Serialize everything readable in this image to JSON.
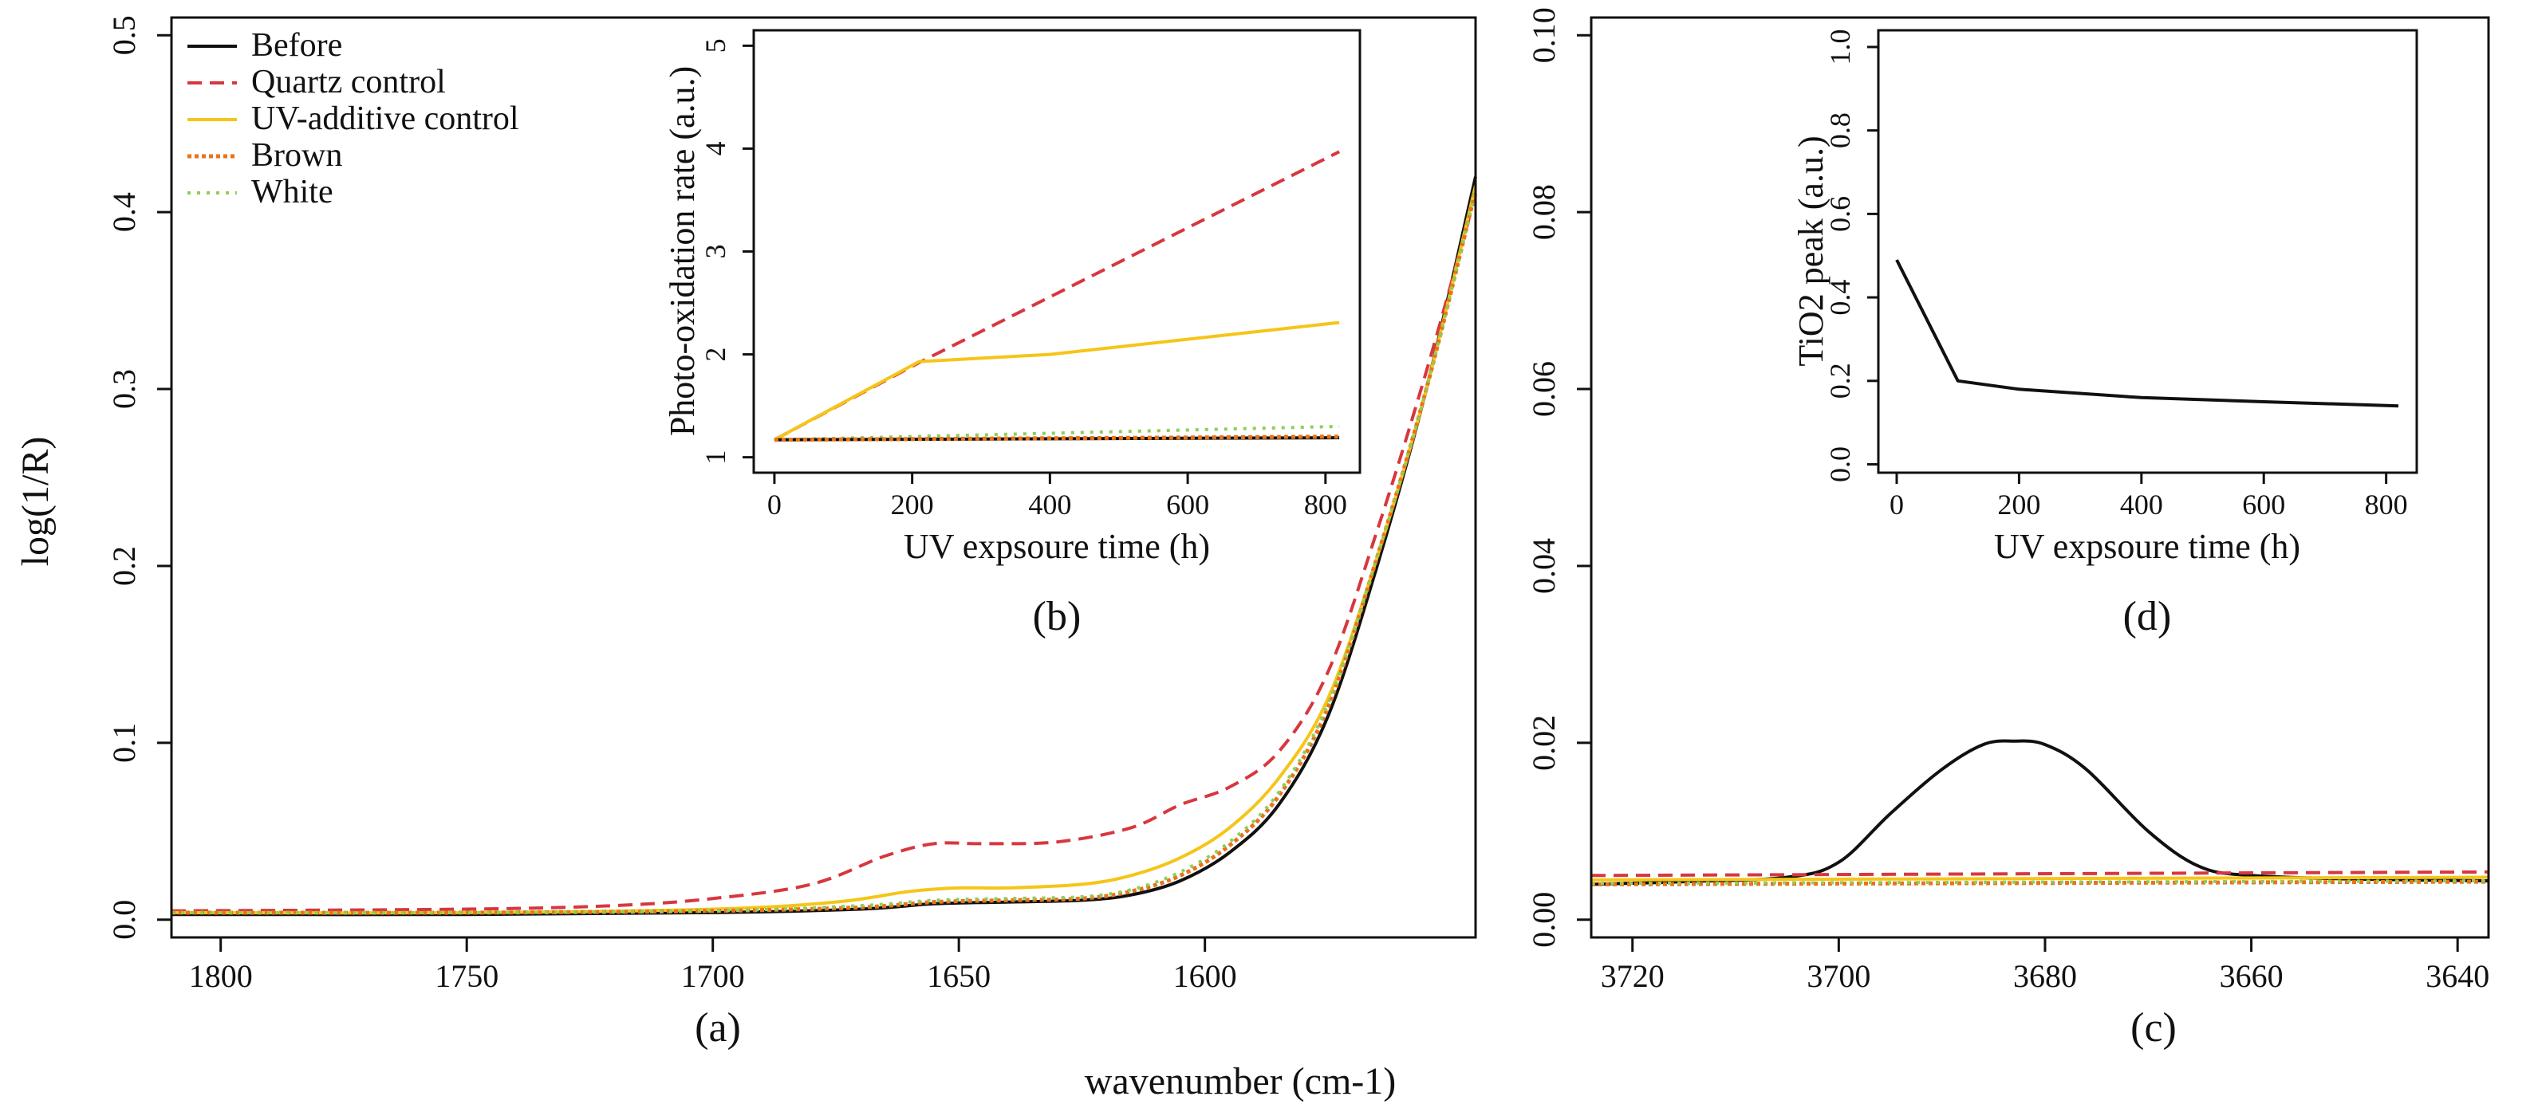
{
  "colors": {
    "before": "#111111",
    "quartz": "#d7373f",
    "uv_additive": "#f5c518",
    "brown": "#e8731a",
    "white": "#8ccf5a"
  },
  "figure": {
    "shared_xlabel": "wavenumber (cm-1)"
  },
  "chart_data": [
    {
      "id": "a",
      "panel_label": "(a)",
      "type": "line",
      "xlabel": "",
      "ylabel": "log(1/R)",
      "xlim": [
        1810,
        1545
      ],
      "ylim": [
        -0.01,
        0.51
      ],
      "xticks": [
        1800,
        1750,
        1700,
        1650,
        1600
      ],
      "xtick_labels": [
        "1800",
        "1750",
        "1700",
        "1650",
        "1600"
      ],
      "yticks": [
        0.0,
        0.1,
        0.2,
        0.3,
        0.4,
        0.5
      ],
      "ytick_labels": [
        "0.0",
        "0.1",
        "0.2",
        "0.3",
        "0.4",
        "0.5"
      ],
      "legend": {
        "position": "top-left",
        "entries": [
          {
            "label": "Before",
            "key": "before",
            "dash": "solid"
          },
          {
            "label": "Quartz control",
            "key": "quartz",
            "dash": "dashed"
          },
          {
            "label": "UV-additive control",
            "key": "uv_additive",
            "dash": "solid"
          },
          {
            "label": "Brown",
            "key": "brown",
            "dash": "dotted-dense"
          },
          {
            "label": "White",
            "key": "white",
            "dash": "dotted"
          }
        ]
      },
      "series": [
        {
          "name": "Before",
          "key": "before",
          "dash": "solid",
          "x": [
            1810,
            1750,
            1700,
            1670,
            1655,
            1640,
            1625,
            1615,
            1605,
            1595,
            1585,
            1575,
            1565,
            1555,
            1545
          ],
          "y": [
            0.003,
            0.003,
            0.004,
            0.006,
            0.009,
            0.01,
            0.011,
            0.014,
            0.022,
            0.038,
            0.065,
            0.115,
            0.2,
            0.3,
            0.42
          ]
        },
        {
          "name": "Quartz control",
          "key": "quartz",
          "dash": "dashed",
          "x": [
            1810,
            1750,
            1720,
            1700,
            1680,
            1665,
            1655,
            1645,
            1630,
            1615,
            1605,
            1595,
            1585,
            1575,
            1565,
            1555,
            1545
          ],
          "y": [
            0.005,
            0.006,
            0.008,
            0.012,
            0.02,
            0.036,
            0.043,
            0.043,
            0.044,
            0.052,
            0.065,
            0.075,
            0.095,
            0.14,
            0.22,
            0.31,
            0.41
          ]
        },
        {
          "name": "UV-additive control",
          "key": "uv_additive",
          "dash": "solid",
          "x": [
            1810,
            1750,
            1700,
            1675,
            1660,
            1650,
            1640,
            1625,
            1615,
            1605,
            1595,
            1585,
            1575,
            1565,
            1555,
            1545
          ],
          "y": [
            0.004,
            0.004,
            0.006,
            0.01,
            0.016,
            0.018,
            0.018,
            0.02,
            0.025,
            0.035,
            0.052,
            0.08,
            0.125,
            0.205,
            0.3,
            0.415
          ]
        },
        {
          "name": "Brown",
          "key": "brown",
          "dash": "dotted-dense",
          "x": [
            1810,
            1750,
            1700,
            1670,
            1655,
            1640,
            1625,
            1615,
            1605,
            1595,
            1585,
            1575,
            1565,
            1555,
            1545
          ],
          "y": [
            0.004,
            0.004,
            0.005,
            0.007,
            0.01,
            0.011,
            0.012,
            0.016,
            0.025,
            0.042,
            0.07,
            0.12,
            0.205,
            0.3,
            0.412
          ]
        },
        {
          "name": "White",
          "key": "white",
          "dash": "dotted",
          "x": [
            1810,
            1750,
            1700,
            1670,
            1655,
            1640,
            1625,
            1615,
            1605,
            1595,
            1585,
            1575,
            1565,
            1555,
            1545
          ],
          "y": [
            0.004,
            0.004,
            0.005,
            0.008,
            0.011,
            0.012,
            0.013,
            0.017,
            0.027,
            0.044,
            0.072,
            0.122,
            0.205,
            0.3,
            0.412
          ]
        }
      ]
    },
    {
      "id": "b",
      "panel_label": "(b)",
      "type": "line",
      "xlabel": "UV expsoure time (h)",
      "ylabel": "Photo-oxidation rate (a.u.)",
      "xlim": [
        -30,
        850
      ],
      "ylim": [
        0.85,
        5.15
      ],
      "xticks": [
        0,
        200,
        400,
        600,
        800
      ],
      "xtick_labels": [
        "0",
        "200",
        "400",
        "600",
        "800"
      ],
      "yticks": [
        1,
        2,
        3,
        4,
        5
      ],
      "ytick_labels": [
        "1",
        "2",
        "3",
        "4",
        "5"
      ],
      "series": [
        {
          "name": "Quartz control",
          "key": "quartz",
          "dash": "dashed",
          "x": [
            0,
            210,
            820
          ],
          "y": [
            1.17,
            1.92,
            3.97
          ]
        },
        {
          "name": "UV-additive control",
          "key": "uv_additive",
          "dash": "solid",
          "x": [
            0,
            210,
            400,
            820
          ],
          "y": [
            1.17,
            1.93,
            2.0,
            2.31
          ]
        },
        {
          "name": "White",
          "key": "white",
          "dash": "dotted",
          "x": [
            0,
            820
          ],
          "y": [
            1.17,
            1.3
          ]
        },
        {
          "name": "Before",
          "key": "before",
          "dash": "solid",
          "x": [
            0,
            820
          ],
          "y": [
            1.17,
            1.19
          ]
        },
        {
          "name": "Brown",
          "key": "brown",
          "dash": "dotted-dense",
          "x": [
            0,
            820
          ],
          "y": [
            1.17,
            1.2
          ]
        }
      ]
    },
    {
      "id": "c",
      "panel_label": "(c)",
      "type": "line",
      "xlabel": "",
      "ylabel": "",
      "xlim": [
        3724,
        3637
      ],
      "ylim": [
        -0.002,
        0.102
      ],
      "xticks": [
        3720,
        3700,
        3680,
        3660,
        3640
      ],
      "xtick_labels": [
        "3720",
        "3700",
        "3680",
        "3660",
        "3640"
      ],
      "yticks": [
        0.0,
        0.02,
        0.04,
        0.06,
        0.08,
        0.1
      ],
      "ytick_labels": [
        "0.00",
        "0.02",
        "0.04",
        "0.06",
        "0.08",
        "0.10"
      ],
      "series": [
        {
          "name": "Before",
          "key": "before",
          "dash": "solid",
          "x": [
            3724,
            3715,
            3705,
            3700,
            3695,
            3690,
            3686,
            3683,
            3680,
            3676,
            3670,
            3665,
            3660,
            3650,
            3637
          ],
          "y": [
            0.004,
            0.0043,
            0.0048,
            0.0065,
            0.012,
            0.017,
            0.0198,
            0.0202,
            0.0198,
            0.017,
            0.01,
            0.006,
            0.005,
            0.0046,
            0.0044
          ]
        },
        {
          "name": "Quartz control",
          "key": "quartz",
          "dash": "dashed",
          "x": [
            3724,
            3637
          ],
          "y": [
            0.005,
            0.0054
          ]
        },
        {
          "name": "UV-additive control",
          "key": "uv_additive",
          "dash": "solid",
          "x": [
            3724,
            3637
          ],
          "y": [
            0.0045,
            0.0048
          ]
        },
        {
          "name": "Brown",
          "key": "brown",
          "dash": "dotted-dense",
          "x": [
            3724,
            3637
          ],
          "y": [
            0.004,
            0.0043
          ]
        },
        {
          "name": "White",
          "key": "white",
          "dash": "dotted",
          "x": [
            3724,
            3637
          ],
          "y": [
            0.0041,
            0.0044
          ]
        }
      ]
    },
    {
      "id": "d",
      "panel_label": "(d)",
      "type": "line",
      "xlabel": "UV expsoure time (h)",
      "ylabel": "TiO2 peak (a.u.)",
      "xlim": [
        -30,
        850
      ],
      "ylim": [
        -0.02,
        1.04
      ],
      "xticks": [
        0,
        200,
        400,
        600,
        800
      ],
      "xtick_labels": [
        "0",
        "200",
        "400",
        "600",
        "800"
      ],
      "yticks": [
        0.0,
        0.2,
        0.4,
        0.6,
        0.8,
        1.0
      ],
      "ytick_labels": [
        "0.0",
        "0.2",
        "0.4",
        "0.6",
        "0.8",
        "1.0"
      ],
      "series": [
        {
          "name": "TiO2 peak",
          "key": "before",
          "dash": "solid",
          "x": [
            0,
            100,
            200,
            400,
            600,
            820
          ],
          "y": [
            0.49,
            0.2,
            0.18,
            0.16,
            0.15,
            0.14
          ]
        }
      ]
    }
  ]
}
